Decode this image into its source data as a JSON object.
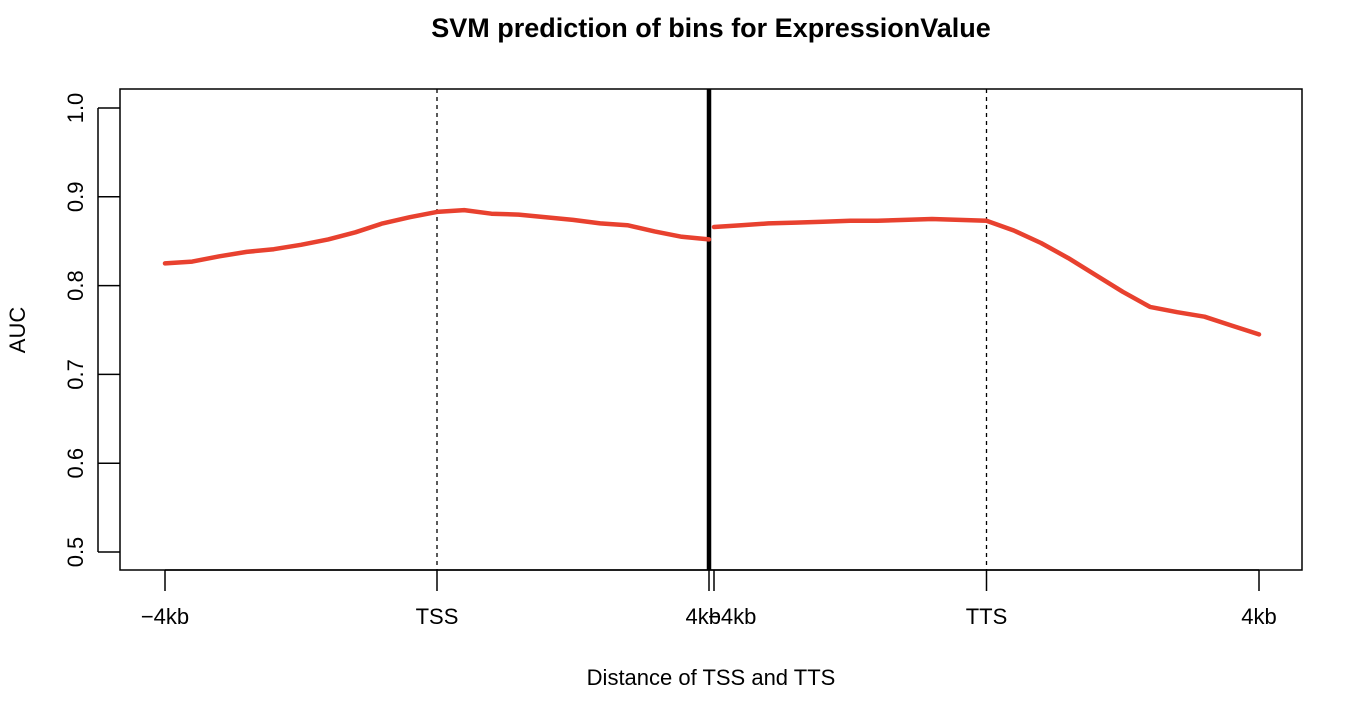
{
  "chart_data": {
    "type": "line",
    "title": "SVM prediction of bins for ExpressionValue",
    "xlabel": "Distance of TSS and TTS",
    "ylabel": "AUC",
    "ylim": [
      0.5,
      1.0
    ],
    "yticks": [
      0.5,
      0.6,
      0.7,
      0.8,
      0.9,
      1.0
    ],
    "ytick_labels": [
      "0.5",
      "0.6",
      "0.7",
      "0.8",
      "0.9",
      "1.0"
    ],
    "x_tick_labels": [
      "−4kb",
      "TSS",
      "4kb",
      "−4kb",
      "TTS",
      "4kb"
    ],
    "color": "#E8412F",
    "panels": [
      {
        "name": "TSS",
        "xlim": [
          -4000,
          4000
        ],
        "ticks": [
          -4000,
          0,
          4000
        ],
        "x": [
          -4000,
          -3600,
          -3200,
          -2800,
          -2400,
          -2000,
          -1600,
          -1200,
          -800,
          -400,
          0,
          400,
          800,
          1200,
          1600,
          2000,
          2400,
          2800,
          3200,
          3600,
          4000
        ],
        "y": [
          0.825,
          0.827,
          0.833,
          0.838,
          0.841,
          0.846,
          0.852,
          0.86,
          0.87,
          0.877,
          0.883,
          0.885,
          0.881,
          0.88,
          0.877,
          0.874,
          0.87,
          0.868,
          0.861,
          0.855,
          0.852
        ]
      },
      {
        "name": "TTS",
        "xlim": [
          -4000,
          4000
        ],
        "ticks": [
          -4000,
          0,
          4000
        ],
        "x": [
          -4000,
          -3600,
          -3200,
          -2800,
          -2400,
          -2000,
          -1600,
          -1200,
          -800,
          -400,
          0,
          400,
          800,
          1200,
          1600,
          2000,
          2400,
          2800,
          3200,
          3600,
          4000
        ],
        "y": [
          0.866,
          0.868,
          0.87,
          0.871,
          0.872,
          0.873,
          0.873,
          0.874,
          0.875,
          0.874,
          0.873,
          0.862,
          0.848,
          0.831,
          0.812,
          0.793,
          0.776,
          0.77,
          0.765,
          0.755,
          0.745
        ]
      }
    ]
  }
}
